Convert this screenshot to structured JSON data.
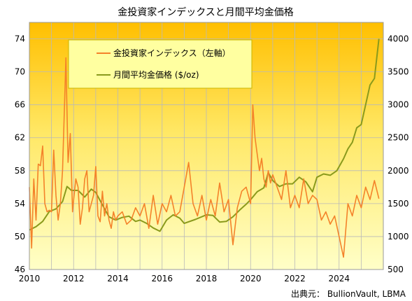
{
  "chart_data": {
    "type": "line",
    "title": "金投資家インデックスと月間平均金価格",
    "source": "出典元： BullionVault, LBMA",
    "legend_position": "top-left",
    "grid": true,
    "x_axis": {
      "range": [
        2010,
        2026
      ],
      "ticks": [
        "2010",
        "2012",
        "2014",
        "2016",
        "2018",
        "2020",
        "2022",
        "2024"
      ]
    },
    "y_left": {
      "range": [
        46,
        76
      ],
      "ticks": [
        "46",
        "50",
        "54",
        "58",
        "62",
        "66",
        "70",
        "74"
      ]
    },
    "y_right": {
      "range": [
        500,
        4250
      ],
      "ticks": [
        "500",
        "1000",
        "1500",
        "2000",
        "2500",
        "3000",
        "3500",
        "4000"
      ]
    },
    "series": [
      {
        "name": "金投資家インデックス（左軸）",
        "axis": "left",
        "color": "#f4822a",
        "x": [
          2010.0,
          2010.1,
          2010.2,
          2010.3,
          2010.4,
          2010.5,
          2010.6,
          2010.7,
          2010.8,
          2010.9,
          2011.0,
          2011.1,
          2011.2,
          2011.3,
          2011.4,
          2011.5,
          2011.6,
          2011.65,
          2011.75,
          2011.85,
          2011.95,
          2012.0,
          2012.1,
          2012.2,
          2012.3,
          2012.4,
          2012.5,
          2012.6,
          2012.7,
          2012.8,
          2012.9,
          2013.0,
          2013.1,
          2013.2,
          2013.3,
          2013.4,
          2013.5,
          2013.6,
          2013.7,
          2013.8,
          2013.9,
          2014.0,
          2014.2,
          2014.4,
          2014.6,
          2014.8,
          2015.0,
          2015.2,
          2015.4,
          2015.6,
          2015.8,
          2016.0,
          2016.2,
          2016.4,
          2016.6,
          2016.8,
          2017.0,
          2017.2,
          2017.4,
          2017.6,
          2017.8,
          2018.0,
          2018.2,
          2018.4,
          2018.6,
          2018.8,
          2019.0,
          2019.2,
          2019.4,
          2019.6,
          2019.8,
          2020.0,
          2020.1,
          2020.2,
          2020.3,
          2020.4,
          2020.5,
          2020.6,
          2020.7,
          2020.8,
          2020.9,
          2021.0,
          2021.2,
          2021.4,
          2021.6,
          2021.8,
          2022.0,
          2022.2,
          2022.4,
          2022.6,
          2022.8,
          2023.0,
          2023.2,
          2023.4,
          2023.6,
          2023.8,
          2024.0,
          2024.2,
          2024.4,
          2024.6,
          2024.8,
          2025.0,
          2025.2,
          2025.4,
          2025.6,
          2025.8
        ],
        "values": [
          56.0,
          48.6,
          57.0,
          52.0,
          58.8,
          58.6,
          61.0,
          54.0,
          53.0,
          53.2,
          53.0,
          60.5,
          55.0,
          52.0,
          54.0,
          58.0,
          67.0,
          71.7,
          59.0,
          62.5,
          53.0,
          54.5,
          57.0,
          56.0,
          51.5,
          53.5,
          57.0,
          58.0,
          53.0,
          54.0,
          55.0,
          58.5,
          52.5,
          51.8,
          55.5,
          52.5,
          54.0,
          52.0,
          51.0,
          53.0,
          52.0,
          52.5,
          53.0,
          51.5,
          52.0,
          53.5,
          52.5,
          54.0,
          51.0,
          55.0,
          51.5,
          54.0,
          53.0,
          55.0,
          52.5,
          53.0,
          56.0,
          59.0,
          54.0,
          52.5,
          55.0,
          52.0,
          54.5,
          52.5,
          56.5,
          53.0,
          54.5,
          49.0,
          53.5,
          55.5,
          56.0,
          54.0,
          66.0,
          62.0,
          60.0,
          58.0,
          59.5,
          57.0,
          56.0,
          58.0,
          56.5,
          57.5,
          56.0,
          54.5,
          58.0,
          53.5,
          55.0,
          53.5,
          57.0,
          54.0,
          55.0,
          54.5,
          52.0,
          53.0,
          51.5,
          52.5,
          50.0,
          47.5,
          54.0,
          52.5,
          55.0,
          53.5,
          56.0,
          54.5,
          56.8,
          54.6
        ]
      },
      {
        "name": "月間平均金価格 ($/oz)",
        "axis": "right",
        "color": "#8a9a1c",
        "x": [
          2010.0,
          2010.3,
          2010.6,
          2010.9,
          2011.2,
          2011.5,
          2011.7,
          2011.9,
          2012.2,
          2012.5,
          2012.8,
          2013.0,
          2013.3,
          2013.6,
          2013.9,
          2014.2,
          2014.5,
          2014.8,
          2015.0,
          2015.3,
          2015.6,
          2015.9,
          2016.2,
          2016.5,
          2016.8,
          2017.0,
          2017.5,
          2018.0,
          2018.3,
          2018.6,
          2018.9,
          2019.2,
          2019.5,
          2019.8,
          2020.0,
          2020.3,
          2020.6,
          2020.8,
          2021.0,
          2021.3,
          2021.6,
          2021.9,
          2022.2,
          2022.5,
          2022.8,
          2023.0,
          2023.3,
          2023.6,
          2023.9,
          2024.2,
          2024.4,
          2024.6,
          2024.8,
          2025.0,
          2025.2,
          2025.4,
          2025.6,
          2025.8
        ],
        "values": [
          1100,
          1150,
          1230,
          1380,
          1420,
          1530,
          1760,
          1700,
          1700,
          1600,
          1720,
          1670,
          1480,
          1300,
          1250,
          1290,
          1310,
          1230,
          1250,
          1200,
          1130,
          1080,
          1250,
          1330,
          1280,
          1200,
          1260,
          1330,
          1320,
          1220,
          1230,
          1300,
          1400,
          1490,
          1560,
          1680,
          1740,
          1970,
          1850,
          1760,
          1800,
          1800,
          1900,
          1830,
          1680,
          1900,
          1950,
          1930,
          2000,
          2180,
          2330,
          2430,
          2650,
          2700,
          3000,
          3300,
          3400,
          4000
        ]
      }
    ]
  }
}
